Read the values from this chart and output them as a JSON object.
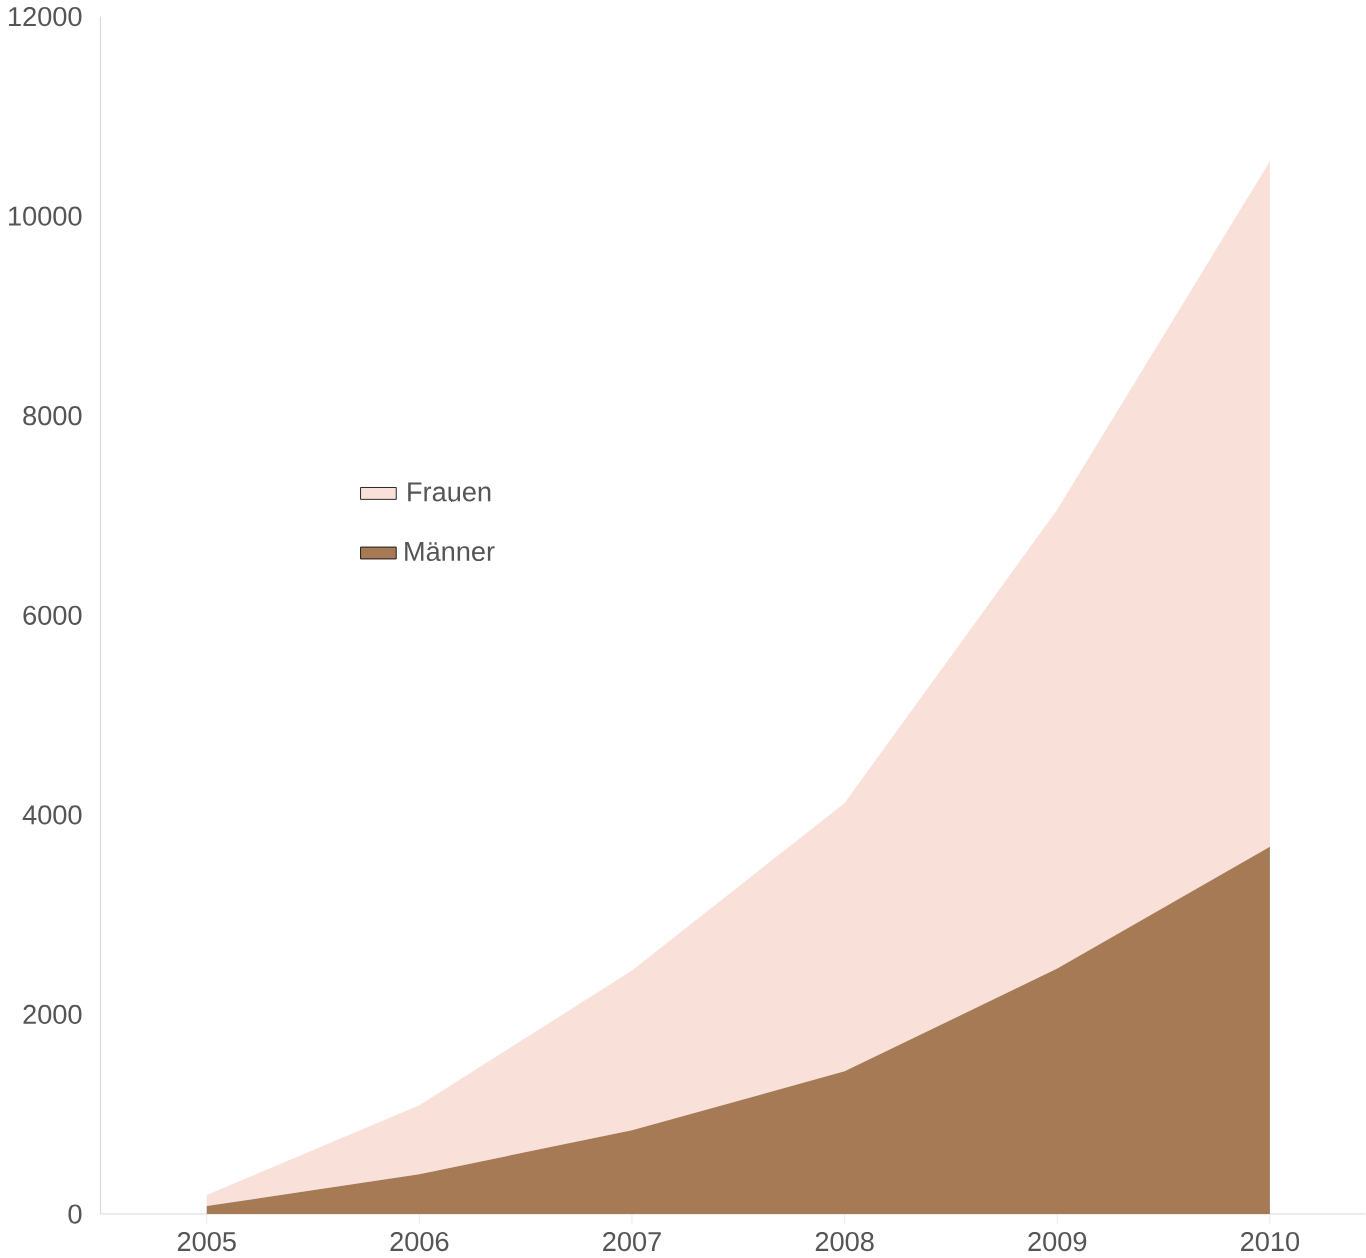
{
  "chart_data": {
    "type": "area",
    "stacked": true,
    "x": [
      2005,
      2006,
      2007,
      2008,
      2009,
      2010
    ],
    "series": [
      {
        "name": "Männer",
        "color": "#a57a55",
        "values": [
          80,
          400,
          840,
          1430,
          2460,
          3680
        ]
      },
      {
        "name": "Frauen",
        "color": "#f9e1da",
        "values": [
          110,
          690,
          1600,
          2690,
          4600,
          6870
        ]
      }
    ],
    "xlim": [
      2004.5,
      2010.45
    ],
    "ylim": [
      0,
      12000
    ],
    "xticks": [
      2005,
      2006,
      2007,
      2008,
      2009,
      2010
    ],
    "yticks": [
      0,
      2000,
      4000,
      6000,
      8000,
      10000,
      12000
    ],
    "legend": "top left",
    "grid": false
  }
}
